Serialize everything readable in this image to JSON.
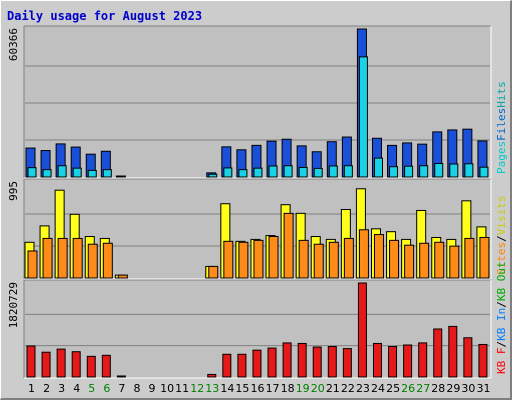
{
  "chart_data": [
    {
      "id": "hits-files-pages",
      "type": "bar",
      "title": "Daily usage for August 2023",
      "categories": [
        "1",
        "2",
        "3",
        "4",
        "5",
        "6",
        "7",
        "8",
        "9",
        "10",
        "11",
        "12",
        "13",
        "14",
        "15",
        "16",
        "17",
        "18",
        "19",
        "20",
        "21",
        "22",
        "23",
        "24",
        "25",
        "26",
        "27",
        "28",
        "29",
        "30",
        "31"
      ],
      "weekend_categories": [
        "5",
        "6",
        "12",
        "13",
        "19",
        "20",
        "26",
        "27"
      ],
      "ymax_label": "60366",
      "ylim": [
        0,
        60366
      ],
      "right_label": [
        "Pages",
        "Files",
        "Hits"
      ],
      "right_label_colors": [
        "#00cccc",
        "#0066cc",
        "#00aaaa"
      ],
      "series": [
        {
          "name": "Hits",
          "color": "#1a50d8",
          "values": [
            11800,
            10800,
            13500,
            12200,
            9300,
            10500,
            400,
            0,
            0,
            0,
            0,
            0,
            1700,
            12300,
            11100,
            12900,
            14600,
            15400,
            12700,
            10300,
            14400,
            16300,
            60366,
            15800,
            12900,
            13900,
            13400,
            18400,
            19200,
            19500,
            14700
          ]
        },
        {
          "name": "Files",
          "color": "#19d2e6",
          "values": [
            3800,
            3000,
            4600,
            3600,
            2700,
            3000,
            0,
            0,
            0,
            0,
            0,
            0,
            1100,
            3700,
            3000,
            3600,
            4500,
            4600,
            3900,
            3500,
            4500,
            4600,
            49000,
            7700,
            4200,
            4400,
            4600,
            5500,
            5300,
            5400,
            4000
          ]
        },
        {
          "name": "Pages",
          "color": "#006464",
          "values": [
            0,
            0,
            0,
            0,
            0,
            0,
            0,
            0,
            0,
            0,
            0,
            0,
            0,
            0,
            0,
            0,
            0,
            0,
            0,
            0,
            0,
            0,
            0,
            0,
            0,
            0,
            0,
            0,
            0,
            0,
            0
          ]
        }
      ]
    },
    {
      "id": "visits-sites",
      "type": "bar",
      "ymax_label": "995",
      "ylim": [
        0,
        995
      ],
      "right_label": [
        "Sites",
        "/",
        "Visits"
      ],
      "right_label_colors": [
        "#ff8800",
        "#000000",
        "#cccc00"
      ],
      "series": [
        {
          "name": "Visits",
          "color": "#ffff19",
          "values": [
            370,
            540,
            910,
            660,
            430,
            410,
            30,
            0,
            0,
            0,
            0,
            0,
            120,
            770,
            380,
            400,
            440,
            760,
            670,
            430,
            400,
            710,
            925,
            510,
            480,
            400,
            700,
            420,
            400,
            800,
            530
          ]
        },
        {
          "name": "Sites",
          "color": "#ff8c19",
          "values": [
            280,
            410,
            410,
            410,
            350,
            360,
            30,
            0,
            0,
            0,
            0,
            0,
            120,
            380,
            370,
            390,
            430,
            670,
            390,
            350,
            370,
            410,
            500,
            450,
            390,
            340,
            360,
            370,
            330,
            410,
            420
          ]
        }
      ]
    },
    {
      "id": "kbytes",
      "type": "bar",
      "ymax_label": "1820729",
      "ylim": [
        0,
        1820729
      ],
      "right_label": [
        "KB F",
        "/",
        "KB In",
        "/",
        "KB Out"
      ],
      "right_label_colors": [
        "#ff0000",
        "#000000",
        "#0080ff",
        "#000000",
        "#00aa00"
      ],
      "series": [
        {
          "name": "KB F",
          "color": "#e61919",
          "values": [
            600000,
            480000,
            540000,
            490000,
            400000,
            420000,
            20000,
            0,
            0,
            0,
            0,
            0,
            50000,
            440000,
            440000,
            520000,
            560000,
            660000,
            650000,
            580000,
            590000,
            550000,
            1820729,
            650000,
            590000,
            620000,
            660000,
            930000,
            980000,
            760000,
            630000
          ]
        }
      ]
    }
  ]
}
